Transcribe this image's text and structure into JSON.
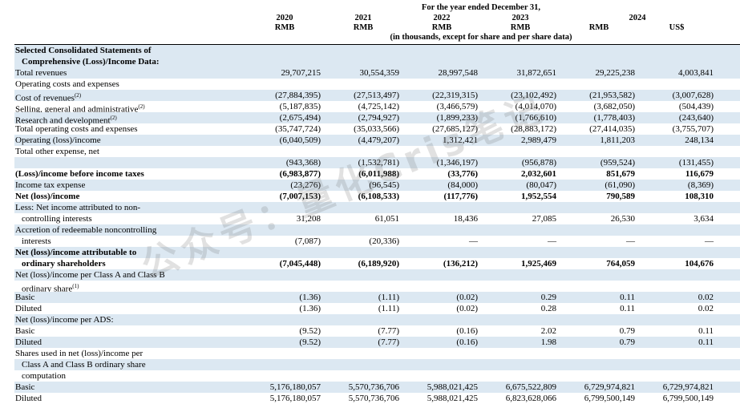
{
  "header": {
    "period_title": "For the year ended December 31,",
    "units_note": "(in thousands, except for share and per share data)",
    "columns": [
      {
        "year": "2020",
        "currency": "RMB"
      },
      {
        "year": "2021",
        "currency": "RMB"
      },
      {
        "year": "2022",
        "currency": "RMB"
      },
      {
        "year": "2023",
        "currency": "RMB"
      },
      {
        "year": "2024",
        "currency": "RMB"
      },
      {
        "year": "",
        "currency": "US$"
      }
    ]
  },
  "section_title": [
    "Selected Consolidated Statements of",
    "Comprehensive (Loss)/Income Data:"
  ],
  "rows": [
    {
      "label": "Total revenues",
      "values": [
        "29,707,215",
        "30,554,359",
        "28,997,548",
        "31,872,651",
        "29,225,238",
        "4,003,841"
      ]
    },
    {
      "label": "Operating costs and expenses",
      "values": [
        "",
        "",
        "",
        "",
        "",
        ""
      ]
    },
    {
      "label": "Cost of revenues",
      "sup": "(2)",
      "values": [
        "(27,884,395)",
        "(27,513,497)",
        "(22,319,315)",
        "(23,102,492)",
        "(21,953,582)",
        "(3,007,628)"
      ]
    },
    {
      "label": "Selling, general and administrative",
      "sup": "(2)",
      "values": [
        "(5,187,835)",
        "(4,725,142)",
        "(3,466,579)",
        "(4,014,070)",
        "(3,682,050)",
        "(504,439)"
      ]
    },
    {
      "label": "Research and development",
      "sup": "(2)",
      "values": [
        "(2,675,494)",
        "(2,794,927)",
        "(1,899,233)",
        "(1,766,610)",
        "(1,778,403)",
        "(243,640)"
      ]
    },
    {
      "label": "Total operating costs and expenses",
      "values": [
        "(35,747,724)",
        "(35,033,566)",
        "(27,685,127)",
        "(28,883,172)",
        "(27,414,035)",
        "(3,755,707)"
      ]
    },
    {
      "label": "Operating (loss)/income",
      "values": [
        "(6,040,509)",
        "(4,479,207)",
        "1,312,421",
        "2,989,479",
        "1,811,203",
        "248,134"
      ]
    },
    {
      "label": "Total other expense, net",
      "values": [
        "",
        "",
        "",
        "",
        "",
        ""
      ]
    },
    {
      "label": "",
      "values": [
        "(943,368)",
        "(1,532,781)",
        "(1,346,197)",
        "(956,878)",
        "(959,524)",
        "(131,455)"
      ]
    },
    {
      "label": "(Loss)/income before income taxes",
      "bold": true,
      "values": [
        "(6,983,877)",
        "(6,011,988)",
        "(33,776)",
        "2,032,601",
        "851,679",
        "116,679"
      ]
    },
    {
      "label": "Income tax expense",
      "values": [
        "(23,276)",
        "(96,545)",
        "(84,000)",
        "(80,047)",
        "(61,090)",
        "(8,369)"
      ]
    },
    {
      "label": "Net (loss)/income",
      "bold": true,
      "values": [
        "(7,007,153)",
        "(6,108,533)",
        "(117,776)",
        "1,952,554",
        "790,589",
        "108,310"
      ]
    },
    {
      "label": "Less: Net income attributed to non-",
      "values": [
        "",
        "",
        "",
        "",
        "",
        ""
      ]
    },
    {
      "label": "controlling interests",
      "indent": true,
      "values": [
        "31,208",
        "61,051",
        "18,436",
        "27,085",
        "26,530",
        "3,634"
      ]
    },
    {
      "label": "Accretion of redeemable noncontrolling",
      "values": [
        "",
        "",
        "",
        "",
        "",
        ""
      ]
    },
    {
      "label": "interests",
      "indent": true,
      "values": [
        "(7,087)",
        "(20,336)",
        "—",
        "—",
        "—",
        "—"
      ]
    },
    {
      "label": "Net (loss)/income attributable to",
      "bold": true,
      "values": [
        "",
        "",
        "",
        "",
        "",
        ""
      ]
    },
    {
      "label": "ordinary shareholders",
      "bold": true,
      "indent": true,
      "values": [
        "(7,045,448)",
        "(6,189,920)",
        "(136,212)",
        "1,925,469",
        "764,059",
        "104,676"
      ]
    },
    {
      "label": "Net (loss)/income per Class A and Class B",
      "values": [
        "",
        "",
        "",
        "",
        "",
        ""
      ]
    },
    {
      "label": "ordinary share",
      "sup": "(1)",
      "indent": true,
      "values": [
        "",
        "",
        "",
        "",
        "",
        ""
      ]
    },
    {
      "label": "Basic",
      "values": [
        "(1.36)",
        "(1.11)",
        "(0.02)",
        "0.29",
        "0.11",
        "0.02"
      ]
    },
    {
      "label": "Diluted",
      "values": [
        "(1.36)",
        "(1.11)",
        "(0.02)",
        "0.28",
        "0.11",
        "0.02"
      ]
    },
    {
      "label": "Net (loss)/income per ADS:",
      "values": [
        "",
        "",
        "",
        "",
        "",
        ""
      ]
    },
    {
      "label": "Basic",
      "values": [
        "(9.52)",
        "(7.77)",
        "(0.16)",
        "2.02",
        "0.79",
        "0.11"
      ]
    },
    {
      "label": "Diluted",
      "values": [
        "(9.52)",
        "(7.77)",
        "(0.16)",
        "1.98",
        "0.79",
        "0.11"
      ]
    },
    {
      "label": "Shares used in net (loss)/income per",
      "values": [
        "",
        "",
        "",
        "",
        "",
        ""
      ]
    },
    {
      "label": "Class A and Class B ordinary share",
      "indent": true,
      "values": [
        "",
        "",
        "",
        "",
        "",
        ""
      ]
    },
    {
      "label": "computation",
      "indent": true,
      "values": [
        "",
        "",
        "",
        "",
        "",
        ""
      ]
    },
    {
      "label": "Basic",
      "values": [
        "5,176,180,057",
        "5,570,736,706",
        "5,988,021,425",
        "6,675,522,809",
        "6,729,974,821",
        "6,729,974,821"
      ]
    },
    {
      "label": "Diluted",
      "values": [
        "5,176,180,057",
        "5,570,736,706",
        "5,988,021,425",
        "6,823,628,066",
        "6,799,500,149",
        "6,799,500,149"
      ]
    }
  ],
  "watermark": [
    "公众号：量化Cris笔记"
  ]
}
